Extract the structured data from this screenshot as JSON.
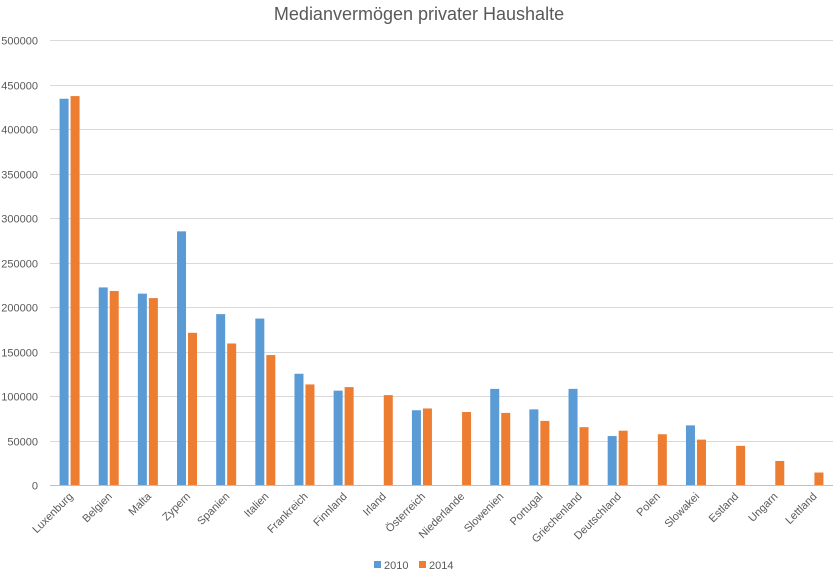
{
  "chart_data": {
    "type": "bar",
    "title": "Medianvermögen privater Haushalte",
    "xlabel": "",
    "ylabel": "",
    "ylim": [
      0,
      500000
    ],
    "yticks": [
      0,
      50000,
      100000,
      150000,
      200000,
      250000,
      300000,
      350000,
      400000,
      450000,
      500000
    ],
    "ytick_labels": [
      "0",
      "50000",
      "100000",
      "150000",
      "200000",
      "250000",
      "300000",
      "350000",
      "400000",
      "450000",
      "500000"
    ],
    "grid": true,
    "legend_position": "bottom",
    "categories": [
      "Luxenburg",
      "Belgien",
      "Malta",
      "Zypern",
      "Spanien",
      "Italien",
      "Frankreich",
      "Finnland",
      "Irland",
      "Österreich",
      "Niederlande",
      "Slowenien",
      "Portugal",
      "Griechenland",
      "Deutschland",
      "Polen",
      "Slowakei",
      "Estland",
      "Ungarn",
      "Lettland"
    ],
    "series": [
      {
        "name": "2010",
        "color": "#5B9BD5",
        "values": [
          434000,
          222000,
          215000,
          285000,
          192000,
          187000,
          125000,
          106000,
          null,
          84000,
          null,
          108000,
          85000,
          108000,
          55000,
          null,
          67000,
          null,
          null,
          null
        ]
      },
      {
        "name": "2014",
        "color": "#ED7D31",
        "values": [
          437000,
          218000,
          210000,
          171000,
          159000,
          146000,
          113000,
          110000,
          101000,
          86000,
          82000,
          81000,
          72000,
          65000,
          61000,
          57000,
          51000,
          44000,
          27000,
          14000
        ]
      }
    ]
  }
}
